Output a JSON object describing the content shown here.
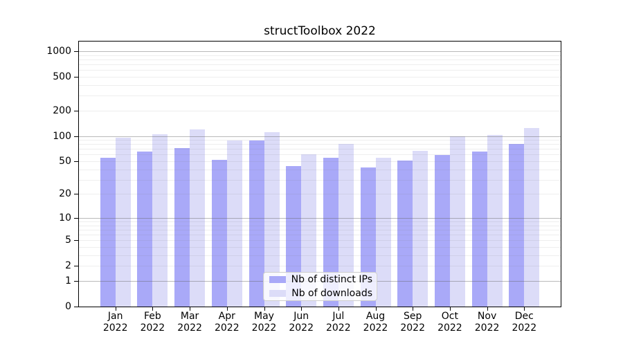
{
  "chart_data": {
    "type": "bar",
    "title": "structToolbox 2022",
    "categories": [
      "Jan",
      "Feb",
      "Mar",
      "Apr",
      "May",
      "Jun",
      "Jul",
      "Aug",
      "Sep",
      "Oct",
      "Nov",
      "Dec"
    ],
    "category_year": "2022",
    "series": [
      {
        "name": "Nb of distinct IPs",
        "color": "#a9a9f8",
        "values": [
          55,
          65,
          72,
          52,
          89,
          44,
          55,
          42,
          51,
          59,
          65,
          80
        ]
      },
      {
        "name": "Nb of downloads",
        "color": "#dcdcf8",
        "values": [
          95,
          104,
          120,
          88,
          111,
          60,
          81,
          55,
          67,
          100,
          103,
          125
        ]
      }
    ],
    "yticks": [
      0,
      1,
      2,
      5,
      10,
      20,
      50,
      100,
      200,
      500,
      1000
    ],
    "scale": "log1p",
    "ylim": [
      0,
      1325
    ],
    "grid": "major-and-minor",
    "legend_position": "lower center",
    "colors": {
      "major_gridline": "#b5b5b5",
      "minor_gridline": "#ebebeb",
      "axis": "#000000",
      "background": "#ffffff"
    }
  }
}
